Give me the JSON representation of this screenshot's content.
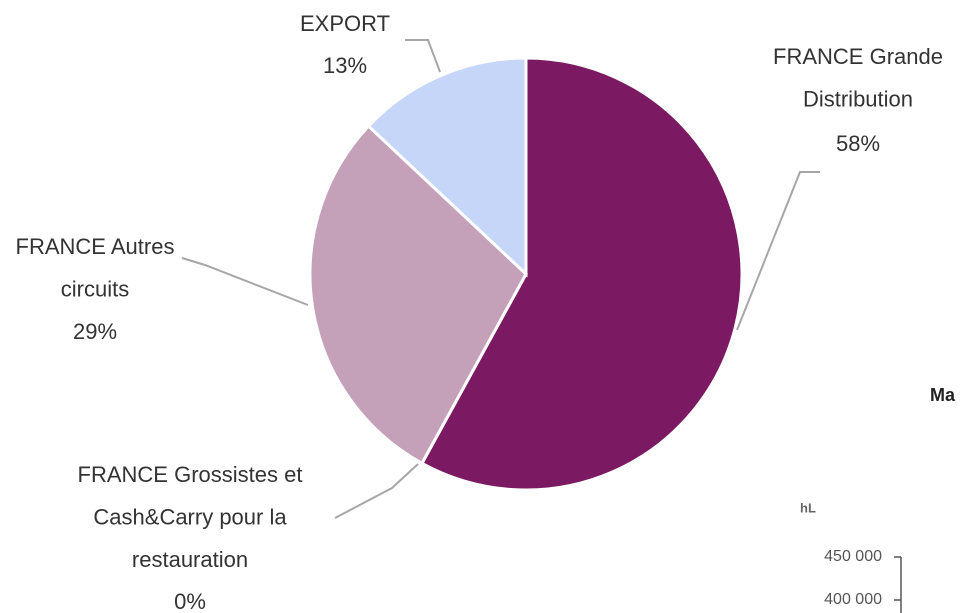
{
  "chart_data": [
    {
      "type": "pie",
      "categories": [
        "FRANCE Grande Distribution",
        "FRANCE Grossistes et Cash&Carry pour la restauration",
        "FRANCE Autres circuits",
        "EXPORT"
      ],
      "values": [
        58,
        0,
        29,
        13
      ],
      "value_labels": [
        "58%",
        "0%",
        "29%",
        "13%"
      ],
      "colors": [
        "#7b1a62",
        "#5b1f4c",
        "#c4a1b8",
        "#c6d6f9"
      ]
    },
    {
      "type": "bar",
      "title": "Ma",
      "ylabel": "hL",
      "ylim": [
        400000,
        450000
      ],
      "yticks": [
        {
          "value": 450000,
          "label": "450 000"
        },
        {
          "value": 400000,
          "label": "400 000"
        }
      ]
    }
  ]
}
